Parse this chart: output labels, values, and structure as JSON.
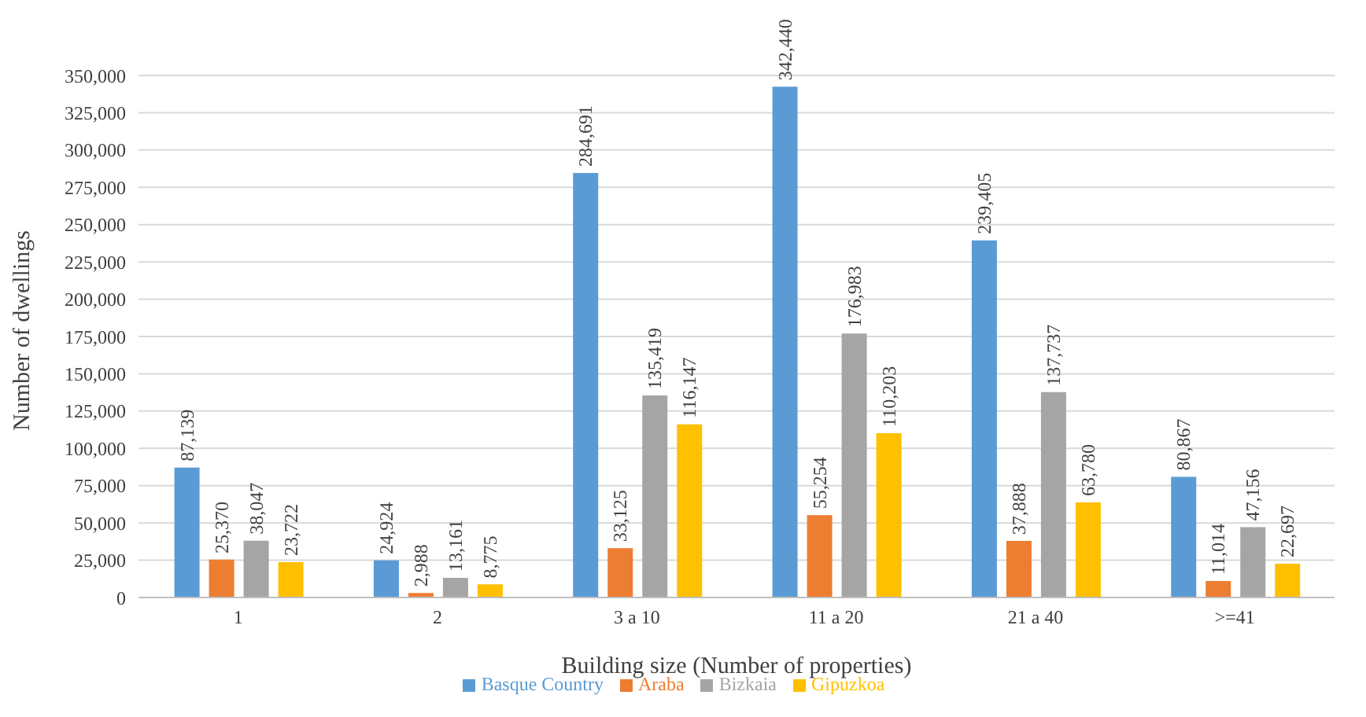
{
  "chart_data": {
    "type": "bar",
    "xlabel": "Building size (Number of properties)",
    "ylabel": "Number of dwellings",
    "categories": [
      "1",
      "2",
      "3 a 10",
      "11 a 20",
      "21 a 40",
      ">=41"
    ],
    "series": [
      {
        "name": "Basque Country",
        "color": "#5b9bd5",
        "values": [
          87139,
          24924,
          284691,
          342440,
          239405,
          80867
        ],
        "value_labels": [
          "87,139",
          "24,924",
          "284,691",
          "342,440",
          "239,405",
          "80,867"
        ]
      },
      {
        "name": "Araba",
        "color": "#ed7d31",
        "values": [
          25370,
          2988,
          33125,
          55254,
          37888,
          11014
        ],
        "value_labels": [
          "25,370",
          "2,988",
          "33,125",
          "55,254",
          "37,888",
          "11,014"
        ]
      },
      {
        "name": "Bizkaia",
        "color": "#a5a5a5",
        "values": [
          38047,
          13161,
          135419,
          176983,
          137737,
          47156
        ],
        "value_labels": [
          "38,047",
          "13,161",
          "135,419",
          "176,983",
          "137,737",
          "47,156"
        ]
      },
      {
        "name": "Gipuzkoa",
        "color": "#ffc000",
        "values": [
          23722,
          8775,
          116147,
          110203,
          63780,
          22697
        ],
        "value_labels": [
          "23,722",
          "8,775",
          "116,147",
          "110,203",
          "63,780",
          "22,697"
        ]
      }
    ],
    "ylim": [
      0,
      350000
    ],
    "yticks": [
      {
        "value": 0,
        "label": "0"
      },
      {
        "value": 25000,
        "label": "25,000"
      },
      {
        "value": 50000,
        "label": "50,000"
      },
      {
        "value": 75000,
        "label": "75,000"
      },
      {
        "value": 100000,
        "label": "100,000"
      },
      {
        "value": 125000,
        "label": "125,000"
      },
      {
        "value": 150000,
        "label": "150,000"
      },
      {
        "value": 175000,
        "label": "175,000"
      },
      {
        "value": 200000,
        "label": "200,000"
      },
      {
        "value": 225000,
        "label": "225,000"
      },
      {
        "value": 250000,
        "label": "250,000"
      },
      {
        "value": 275000,
        "label": "275,000"
      },
      {
        "value": 300000,
        "label": "300,000"
      },
      {
        "value": 325000,
        "label": "325,000"
      },
      {
        "value": 350000,
        "label": "350,000"
      }
    ],
    "grid": "y",
    "legend": "bottom"
  }
}
